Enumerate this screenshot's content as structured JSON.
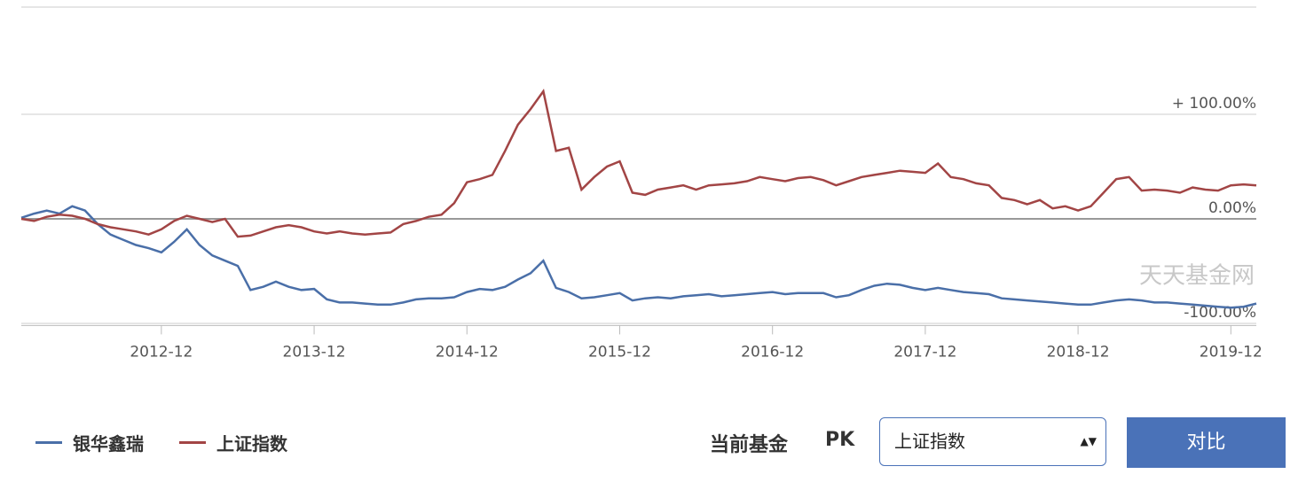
{
  "chart_data": {
    "type": "line",
    "watermark": "天天基金网",
    "x": [
      "2012-01",
      "2012-02",
      "2012-03",
      "2012-04",
      "2012-05",
      "2012-06",
      "2012-07",
      "2012-08",
      "2012-09",
      "2012-10",
      "2012-11",
      "2012-12",
      "2013-01",
      "2013-02",
      "2013-03",
      "2013-04",
      "2013-05",
      "2013-06",
      "2013-07",
      "2013-08",
      "2013-09",
      "2013-10",
      "2013-11",
      "2013-12",
      "2014-01",
      "2014-02",
      "2014-03",
      "2014-04",
      "2014-05",
      "2014-06",
      "2014-07",
      "2014-08",
      "2014-09",
      "2014-10",
      "2014-11",
      "2014-12",
      "2015-01",
      "2015-02",
      "2015-03",
      "2015-04",
      "2015-05",
      "2015-06",
      "2015-07",
      "2015-08",
      "2015-09",
      "2015-10",
      "2015-11",
      "2015-12",
      "2016-01",
      "2016-02",
      "2016-03",
      "2016-04",
      "2016-05",
      "2016-06",
      "2016-07",
      "2016-08",
      "2016-09",
      "2016-10",
      "2016-11",
      "2016-12",
      "2017-01",
      "2017-02",
      "2017-03",
      "2017-04",
      "2017-05",
      "2017-06",
      "2017-07",
      "2017-08",
      "2017-09",
      "2017-10",
      "2017-11",
      "2017-12",
      "2018-01",
      "2018-02",
      "2018-03",
      "2018-04",
      "2018-05",
      "2018-06",
      "2018-07",
      "2018-08",
      "2018-09",
      "2018-10",
      "2018-11",
      "2018-12",
      "2019-01",
      "2019-02",
      "2019-03",
      "2019-04",
      "2019-05",
      "2019-06",
      "2019-07",
      "2019-08",
      "2019-09",
      "2019-10",
      "2019-11",
      "2019-12",
      "2020-01",
      "2020-02"
    ],
    "series": [
      {
        "name": "银华鑫瑞",
        "color": "#4a6fa8",
        "values": [
          1,
          5,
          8,
          5,
          12,
          8,
          -5,
          -15,
          -20,
          -25,
          -28,
          -32,
          -22,
          -10,
          -25,
          -35,
          -40,
          -45,
          -68,
          -65,
          -60,
          -65,
          -68,
          -67,
          -77,
          -80,
          -80,
          -81,
          -82,
          -82,
          -80,
          -77,
          -76,
          -76,
          -75,
          -70,
          -67,
          -68,
          -65,
          -58,
          -52,
          -40,
          -66,
          -70,
          -76,
          -75,
          -73,
          -71,
          -78,
          -76,
          -75,
          -76,
          -74,
          -73,
          -72,
          -74,
          -73,
          -72,
          -71,
          -70,
          -72,
          -71,
          -71,
          -71,
          -75,
          -73,
          -68,
          -64,
          -62,
          -63,
          -66,
          -68,
          -66,
          -68,
          -70,
          -71,
          -72,
          -76,
          -77,
          -78,
          -79,
          -80,
          -81,
          -82,
          -82,
          -80,
          -78,
          -77,
          -78,
          -80,
          -80,
          -81,
          -82,
          -83,
          -84,
          -85,
          -84,
          -81
        ]
      },
      {
        "name": "上证指数",
        "color": "#a24545",
        "values": [
          0,
          -2,
          2,
          4,
          3,
          0,
          -5,
          -8,
          -10,
          -12,
          -15,
          -10,
          -2,
          3,
          0,
          -3,
          0,
          -17,
          -16,
          -12,
          -8,
          -6,
          -8,
          -12,
          -14,
          -12,
          -14,
          -15,
          -14,
          -13,
          -5,
          -2,
          2,
          4,
          15,
          35,
          38,
          42,
          65,
          90,
          105,
          122,
          65,
          68,
          28,
          40,
          50,
          55,
          25,
          23,
          28,
          30,
          32,
          28,
          32,
          33,
          34,
          36,
          40,
          38,
          36,
          39,
          40,
          37,
          32,
          36,
          40,
          42,
          44,
          46,
          45,
          44,
          53,
          40,
          38,
          34,
          32,
          20,
          18,
          14,
          18,
          10,
          12,
          8,
          12,
          25,
          38,
          40,
          27,
          28,
          27,
          25,
          30,
          28,
          27,
          32,
          33,
          32
        ]
      }
    ],
    "ylim": [
      -102,
      202
    ],
    "yticks": [
      {
        "value": -100,
        "label": "-100.00%"
      },
      {
        "value": 0,
        "label": "0.00%"
      },
      {
        "value": 100,
        "label": "+ 100.00%"
      }
    ],
    "xticks": [
      "2012-12",
      "2013-12",
      "2014-12",
      "2015-12",
      "2016-12",
      "2017-12",
      "2018-12",
      "2019-12"
    ],
    "grid": true
  },
  "controls": {
    "label": "当前基金",
    "pk": "PK",
    "select": "上证指数",
    "button": "对比"
  }
}
